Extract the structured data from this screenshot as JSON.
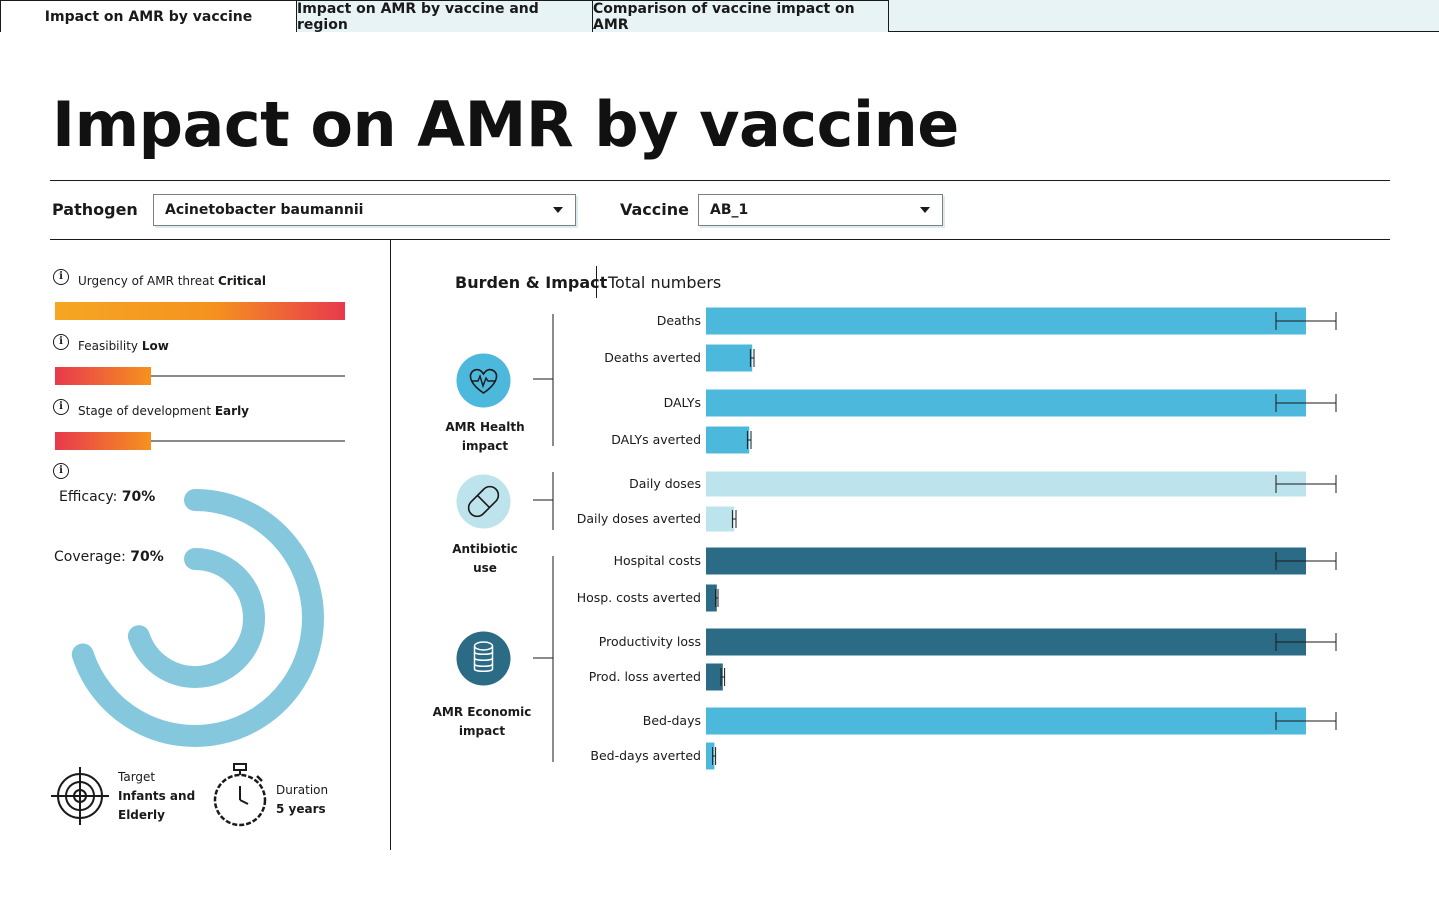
{
  "tabs": [
    {
      "label": "Impact on AMR by vaccine",
      "active": true
    },
    {
      "label": "Impact on AMR by vaccine and region",
      "active": false
    },
    {
      "label": "Comparison of  vaccine impact  on AMR",
      "active": false
    }
  ],
  "page_title": "Impact on AMR by vaccine",
  "filters": {
    "pathogen_label": "Pathogen",
    "pathogen_value": "Acinetobacter baumannii",
    "vaccine_label": "Vaccine",
    "vaccine_value": "AB_1"
  },
  "info_icon_glyph": "i",
  "left_panel": {
    "urgency": {
      "label": "Urgency of AMR threat",
      "value": "Critical",
      "level": 1.0
    },
    "feasibility": {
      "label": "Feasibility",
      "value": "Low",
      "level": 0.33
    },
    "stage": {
      "label": "Stage of development",
      "value": "Early",
      "level": 0.33
    },
    "efficacy": {
      "label": "Efficacy:",
      "value": "70%",
      "fraction": 0.7
    },
    "coverage": {
      "label": "Coverage:",
      "value": "70%",
      "fraction": 0.7
    },
    "target": {
      "label": "Target",
      "value_line1": "Infants and",
      "value_line2": "Elderly"
    },
    "duration": {
      "label": "Duration",
      "value": "5 years"
    },
    "colors": {
      "ring": "#85c8de",
      "grad_start": "#e8394d",
      "grad_mid": "#f5921f",
      "grad_end": "#f5a623"
    }
  },
  "right_panel": {
    "header_left": "Burden & Impact",
    "header_right": "Total numbers",
    "categories": [
      {
        "label_line1": "AMR Health",
        "label_line2": "impact",
        "icon": "heart-pulse-icon"
      },
      {
        "label_line1": "Antibiotic",
        "label_line2": "use",
        "icon": "pill-icon"
      },
      {
        "label_line1": "AMR Economic",
        "label_line2": "impact",
        "icon": "coins-icon"
      }
    ]
  },
  "chart_data": {
    "type": "bar",
    "orientation": "horizontal",
    "categories": [
      "Deaths",
      "Deaths averted",
      "DALYs",
      "DALYs averted",
      "Daily doses",
      "Daily doses averted",
      "Hospital costs",
      "Hosp. costs averted",
      "Productivity loss",
      "Prod. loss averted",
      "Bed-days",
      "Bed-days averted"
    ],
    "values": [
      100,
      7.7,
      100,
      7.2,
      100,
      4.7,
      100,
      1.8,
      100,
      2.8,
      100,
      1.4
    ],
    "error_low": [
      95,
      7.4,
      95,
      6.9,
      95,
      4.4,
      95,
      1.6,
      95,
      2.5,
      95,
      1.1
    ],
    "error_high": [
      105,
      8.0,
      105,
      7.5,
      105,
      5.0,
      105,
      2.0,
      105,
      3.1,
      105,
      1.6
    ],
    "group": [
      "AMR Health impact",
      "AMR Health impact",
      "AMR Health impact",
      "AMR Health impact",
      "Antibiotic use",
      "Antibiotic use",
      "AMR Economic impact",
      "AMR Economic impact",
      "AMR Economic impact",
      "AMR Economic impact",
      "AMR Economic impact",
      "AMR Economic impact"
    ],
    "colors": [
      "#4cb8db",
      "#4cb8db",
      "#4cb8db",
      "#4cb8db",
      "#bde3ed",
      "#bde3ed",
      "#2b6b85",
      "#2b6b85",
      "#2b6b85",
      "#2b6b85",
      "#4cb8db",
      "#4cb8db"
    ],
    "xlim": [
      0,
      110
    ],
    "grid": false
  }
}
